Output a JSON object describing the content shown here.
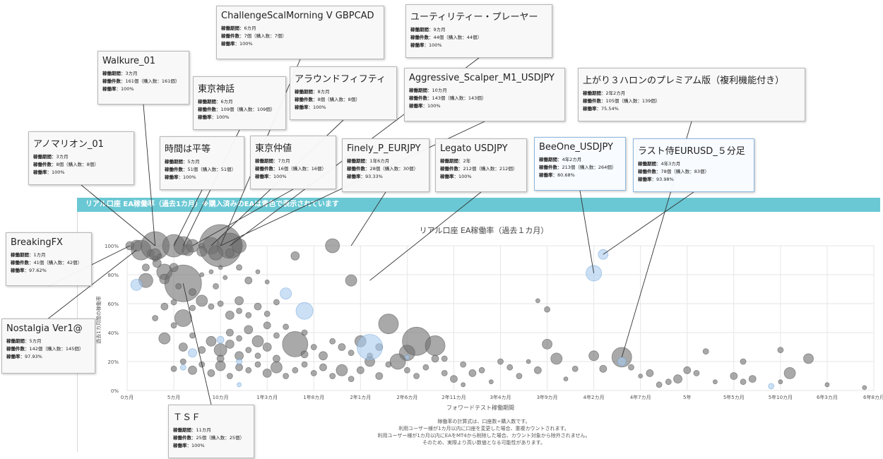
{
  "banner": "リアル口座 EA稼働率（過去1カ月）※購入済みのEAは青色で表示されています",
  "card_labels": {
    "period": "稼働期間",
    "count": "稼働件数",
    "rate": "稼働率"
  },
  "cards": [
    {
      "name": "ChallengeScalMorning V GBPCAD",
      "period": "：6カ月",
      "count": "：7個（購入数：7個）",
      "rate": "：100%",
      "buy": false
    },
    {
      "name": "ユーティリティー・プレーヤー",
      "period": "：9カ月",
      "count": "：44個（購入数：44個）",
      "rate": "：100%",
      "buy": false
    },
    {
      "name": "Walkure_01",
      "period": "：3カ月",
      "count": "：161個（購入数：161個）",
      "rate": "：100%",
      "buy": false
    },
    {
      "name": "東京神話",
      "period": "：6カ月",
      "count": "：109個（購入数：109個）",
      "rate": "：100%",
      "buy": false
    },
    {
      "name": "アラウンドフィフティ",
      "period": "：8カ月",
      "count": "：8個（購入数：8個）",
      "rate": "：100%",
      "buy": false
    },
    {
      "name": "Aggressive_Scalper_M1_USDJPY",
      "period": "：10カ月",
      "count": "：143個（購入数：143個）",
      "rate": "：100%",
      "buy": false
    },
    {
      "name": "上がり３ハロンのプレミアム版（複利機能付き）",
      "period": "：2年2カ月",
      "count": "：105個（購入数：139個）",
      "rate": "：75.54%",
      "buy": false
    },
    {
      "name": "アノマリオン_01",
      "period": "：3カ月",
      "count": "：8個（購入数：8個）",
      "rate": "：100%",
      "buy": false
    },
    {
      "name": "時間は平等",
      "period": "：5カ月",
      "count": "：51個（購入数：51個）",
      "rate": "：100%",
      "buy": false
    },
    {
      "name": "東京仲値",
      "period": "：7カ月",
      "count": "：16個（購入数：16個）",
      "rate": "：100%",
      "buy": false
    },
    {
      "name": "Finely_P_EURJPY",
      "period": "：1年6カ月",
      "count": "：28個（購入数：30個）",
      "rate": "：93.33%",
      "buy": false
    },
    {
      "name": "Legato USDJPY",
      "period": "：2年",
      "count": "：212個（購入数：212個）",
      "rate": "：100%",
      "buy": false
    },
    {
      "name": "BeeOne_USDJPY",
      "period": "：4年2カ月",
      "count": "：213個（購入数：264個）",
      "rate": "：80.68%",
      "buy": true
    },
    {
      "name": "ラスト侍EURUSD_５分足",
      "period": "：4年3カ月",
      "count": "：78個（購入数：83個）",
      "rate": "：93.98%",
      "buy": true
    },
    {
      "name": "BreakingFX",
      "period": "：1カ月",
      "count": "：41個（購入数：42個）",
      "rate": "：97.62%",
      "buy": false
    },
    {
      "name": "Nostalgia Ver1@",
      "period": "：5カ月",
      "count": "：142個（購入数：145個）",
      "rate": "：97.93%",
      "buy": false
    },
    {
      "name": "ＴＳＦ",
      "period": "：11カ月",
      "count": "：25個（購入数：25個）",
      "rate": "：100%",
      "buy": false
    }
  ],
  "chart_data": {
    "type": "scatter",
    "title": "リアル口座 EA稼働率（過去１カ月）",
    "xlabel": "フォワードテスト稼働期間",
    "ylabel": "過去1カ月間の稼働率",
    "x_unit": "months",
    "xlim": [
      0,
      80
    ],
    "ylim": [
      0,
      100
    ],
    "x_tick_labels": [
      "0カ月",
      "5カ月",
      "10カ月",
      "1年3カ月",
      "1年8カ月",
      "2年1カ月",
      "2年6カ月",
      "2年11カ月",
      "3年4カ月",
      "3年9カ月",
      "4年2カ月",
      "4年7カ月",
      "5年",
      "5年5カ月",
      "5年10カ月",
      "6年3カ月",
      "6年8カ月"
    ],
    "y_tick_labels": [
      "0%",
      "20%",
      "40%",
      "60%",
      "80%",
      "100%"
    ],
    "grid": true,
    "colors": {
      "normal": "#707070",
      "purchased": "#a8cbef",
      "purchased_stroke": "#6fa3d8"
    },
    "series": [
      {
        "name": "EA",
        "points": [
          {
            "x": 0.3,
            "y": 100,
            "s": 6
          },
          {
            "x": 1,
            "y": 100,
            "s": 8
          },
          {
            "x": 1.5,
            "y": 97,
            "s": 14
          },
          {
            "x": 2.5,
            "y": 95,
            "s": 5
          },
          {
            "x": 3,
            "y": 100,
            "s": 20
          },
          {
            "x": 3,
            "y": 94,
            "s": 8
          },
          {
            "x": 3,
            "y": 91,
            "s": 4
          },
          {
            "x": 3.2,
            "y": 88,
            "s": 6
          },
          {
            "x": 3.5,
            "y": 93,
            "s": 3
          },
          {
            "x": 2,
            "y": 85,
            "s": 5
          },
          {
            "x": 2,
            "y": 76,
            "s": 10
          },
          {
            "x": 4,
            "y": 82,
            "s": 11
          },
          {
            "x": 4,
            "y": 77,
            "s": 7
          },
          {
            "x": 5,
            "y": 100,
            "s": 16
          },
          {
            "x": 6,
            "y": 100,
            "s": 13
          },
          {
            "x": 6.5,
            "y": 97,
            "s": 8
          },
          {
            "x": 7,
            "y": 100,
            "s": 9
          },
          {
            "x": 8,
            "y": 100,
            "s": 4
          },
          {
            "x": 9,
            "y": 100,
            "s": 12
          },
          {
            "x": 10,
            "y": 100,
            "s": 30
          },
          {
            "x": 11,
            "y": 100,
            "s": 18
          },
          {
            "x": 12,
            "y": 100,
            "s": 10
          },
          {
            "x": 8,
            "y": 96,
            "s": 7
          },
          {
            "x": 9.5,
            "y": 95,
            "s": 10
          },
          {
            "x": 11,
            "y": 95,
            "s": 6
          },
          {
            "x": 6,
            "y": 74,
            "s": 26
          },
          {
            "x": 5,
            "y": 85,
            "s": 6
          },
          {
            "x": 5.5,
            "y": 72,
            "s": 4
          },
          {
            "x": 7,
            "y": 68,
            "s": 5
          },
          {
            "x": 8,
            "y": 80,
            "s": 3
          },
          {
            "x": 9,
            "y": 82,
            "s": 3
          },
          {
            "x": 9.5,
            "y": 72,
            "s": 4
          },
          {
            "x": 10,
            "y": 85,
            "s": 3
          },
          {
            "x": 10.5,
            "y": 78,
            "s": 3
          },
          {
            "x": 12,
            "y": 85,
            "s": 4
          },
          {
            "x": 13,
            "y": 76,
            "s": 5
          },
          {
            "x": 14,
            "y": 82,
            "s": 3
          },
          {
            "x": 15,
            "y": 75,
            "s": 3
          },
          {
            "x": 18,
            "y": 93,
            "s": 6
          },
          {
            "x": 4,
            "y": 58,
            "s": 5
          },
          {
            "x": 5,
            "y": 61,
            "s": 4
          },
          {
            "x": 6,
            "y": 50,
            "s": 12
          },
          {
            "x": 7,
            "y": 57,
            "s": 4
          },
          {
            "x": 8,
            "y": 62,
            "s": 8
          },
          {
            "x": 9,
            "y": 58,
            "s": 4
          },
          {
            "x": 10,
            "y": 60,
            "s": 4
          },
          {
            "x": 11,
            "y": 52,
            "s": 6
          },
          {
            "x": 12,
            "y": 62,
            "s": 6
          },
          {
            "x": 12,
            "y": 55,
            "s": 4
          },
          {
            "x": 13,
            "y": 52,
            "s": 4
          },
          {
            "x": 14,
            "y": 58,
            "s": 5
          },
          {
            "x": 15,
            "y": 53,
            "s": 4
          },
          {
            "x": 16,
            "y": 61,
            "s": 4
          },
          {
            "x": 3,
            "y": 50,
            "s": 4
          },
          {
            "x": 4,
            "y": 36,
            "s": 8
          },
          {
            "x": 5,
            "y": 45,
            "s": 4
          },
          {
            "x": 6,
            "y": 30,
            "s": 6
          },
          {
            "x": 7,
            "y": 38,
            "s": 4
          },
          {
            "x": 8,
            "y": 28,
            "s": 5
          },
          {
            "x": 9,
            "y": 34,
            "s": 7
          },
          {
            "x": 10,
            "y": 28,
            "s": 9
          },
          {
            "x": 10,
            "y": 22,
            "s": 5
          },
          {
            "x": 11,
            "y": 40,
            "s": 5
          },
          {
            "x": 11,
            "y": 32,
            "s": 6
          },
          {
            "x": 12,
            "y": 36,
            "s": 4
          },
          {
            "x": 12,
            "y": 24,
            "s": 6
          },
          {
            "x": 13,
            "y": 42,
            "s": 6
          },
          {
            "x": 13,
            "y": 28,
            "s": 4
          },
          {
            "x": 14,
            "y": 34,
            "s": 8
          },
          {
            "x": 14,
            "y": 24,
            "s": 4
          },
          {
            "x": 15,
            "y": 45,
            "s": 5
          },
          {
            "x": 15,
            "y": 30,
            "s": 6
          },
          {
            "x": 16,
            "y": 38,
            "s": 4
          },
          {
            "x": 16,
            "y": 22,
            "s": 5
          },
          {
            "x": 17,
            "y": 44,
            "s": 4
          },
          {
            "x": 18,
            "y": 32,
            "s": 18
          },
          {
            "x": 19,
            "y": 25,
            "s": 5
          },
          {
            "x": 19,
            "y": 40,
            "s": 4
          },
          {
            "x": 20,
            "y": 30,
            "s": 4
          },
          {
            "x": 21,
            "y": 24,
            "s": 6
          },
          {
            "x": 22,
            "y": 34,
            "s": 4
          },
          {
            "x": 23,
            "y": 30,
            "s": 5
          },
          {
            "x": 24,
            "y": 26,
            "s": 4
          },
          {
            "x": 25,
            "y": 34,
            "s": 8
          },
          {
            "x": 26,
            "y": 24,
            "s": 4
          },
          {
            "x": 27,
            "y": 30,
            "s": 5
          },
          {
            "x": 28,
            "y": 46,
            "s": 14
          },
          {
            "x": 30,
            "y": 26,
            "s": 11
          },
          {
            "x": 31,
            "y": 34,
            "s": 20
          },
          {
            "x": 33,
            "y": 31,
            "s": 14
          },
          {
            "x": 34,
            "y": 22,
            "s": 4
          },
          {
            "x": 5,
            "y": 15,
            "s": 4
          },
          {
            "x": 6,
            "y": 20,
            "s": 4
          },
          {
            "x": 7,
            "y": 14,
            "s": 6
          },
          {
            "x": 8,
            "y": 18,
            "s": 4
          },
          {
            "x": 9,
            "y": 12,
            "s": 5
          },
          {
            "x": 10,
            "y": 17,
            "s": 7
          },
          {
            "x": 11,
            "y": 10,
            "s": 4
          },
          {
            "x": 12,
            "y": 16,
            "s": 5
          },
          {
            "x": 13,
            "y": 14,
            "s": 4
          },
          {
            "x": 14,
            "y": 18,
            "s": 4
          },
          {
            "x": 15,
            "y": 12,
            "s": 6
          },
          {
            "x": 16,
            "y": 16,
            "s": 8
          },
          {
            "x": 17,
            "y": 10,
            "s": 4
          },
          {
            "x": 18,
            "y": 14,
            "s": 4
          },
          {
            "x": 19,
            "y": 18,
            "s": 4
          },
          {
            "x": 20,
            "y": 12,
            "s": 4
          },
          {
            "x": 21,
            "y": 16,
            "s": 5
          },
          {
            "x": 22,
            "y": 10,
            "s": 4
          },
          {
            "x": 23,
            "y": 14,
            "s": 8
          },
          {
            "x": 24,
            "y": 8,
            "s": 4
          },
          {
            "x": 25,
            "y": 14,
            "s": 5
          },
          {
            "x": 26,
            "y": 20,
            "s": 7
          },
          {
            "x": 27,
            "y": 10,
            "s": 5
          },
          {
            "x": 28,
            "y": 18,
            "s": 4
          },
          {
            "x": 29,
            "y": 20,
            "s": 11
          },
          {
            "x": 30,
            "y": 14,
            "s": 4
          },
          {
            "x": 31,
            "y": 10,
            "s": 4
          },
          {
            "x": 32,
            "y": 16,
            "s": 4
          },
          {
            "x": 33,
            "y": 22,
            "s": 5
          },
          {
            "x": 34,
            "y": 12,
            "s": 4
          },
          {
            "x": 35,
            "y": 8,
            "s": 5
          },
          {
            "x": 36,
            "y": 18,
            "s": 4
          },
          {
            "x": 37,
            "y": 12,
            "s": 5
          },
          {
            "x": 38,
            "y": 14,
            "s": 4
          },
          {
            "x": 40,
            "y": 20,
            "s": 4
          },
          {
            "x": 41,
            "y": 16,
            "s": 4
          },
          {
            "x": 42,
            "y": 10,
            "s": 4
          },
          {
            "x": 44,
            "y": 62,
            "s": 3
          },
          {
            "x": 45,
            "y": 56,
            "s": 4
          },
          {
            "x": 44,
            "y": 14,
            "s": 5
          },
          {
            "x": 45,
            "y": 32,
            "s": 7
          },
          {
            "x": 46,
            "y": 22,
            "s": 8
          },
          {
            "x": 48,
            "y": 15,
            "s": 4
          },
          {
            "x": 50,
            "y": 24,
            "s": 7
          },
          {
            "x": 51,
            "y": 15,
            "s": 5
          },
          {
            "x": 53,
            "y": 23,
            "s": 14
          },
          {
            "x": 54,
            "y": 16,
            "s": 4
          },
          {
            "x": 56,
            "y": 12,
            "s": 5
          },
          {
            "x": 57,
            "y": 4,
            "s": 4
          },
          {
            "x": 58,
            "y": 6,
            "s": 4
          },
          {
            "x": 59,
            "y": 8,
            "s": 6
          },
          {
            "x": 60,
            "y": 14,
            "s": 5
          },
          {
            "x": 61,
            "y": 12,
            "s": 4
          },
          {
            "x": 62,
            "y": 27,
            "s": 4
          },
          {
            "x": 63,
            "y": 6,
            "s": 3
          },
          {
            "x": 65,
            "y": 10,
            "s": 5
          },
          {
            "x": 66,
            "y": 20,
            "s": 4
          },
          {
            "x": 67,
            "y": 8,
            "s": 5
          },
          {
            "x": 70,
            "y": 6,
            "s": 3
          },
          {
            "x": 70,
            "y": 28,
            "s": 4
          },
          {
            "x": 71,
            "y": 12,
            "s": 8
          },
          {
            "x": 73,
            "y": 22,
            "s": 7
          },
          {
            "x": 75,
            "y": 4,
            "s": 3
          },
          {
            "x": 79,
            "y": 2,
            "s": 3
          },
          {
            "x": 66,
            "y": 6,
            "s": 4
          },
          {
            "x": 55,
            "y": 10,
            "s": 3
          },
          {
            "x": 47,
            "y": 8,
            "s": 3
          },
          {
            "x": 43,
            "y": 20,
            "s": 3
          },
          {
            "x": 39,
            "y": 6,
            "s": 3
          },
          {
            "x": 36,
            "y": 4,
            "s": 3
          },
          {
            "x": 22,
            "y": 100,
            "s": 10
          },
          {
            "x": 24,
            "y": 76,
            "s": 8
          },
          {
            "x": 1,
            "y": 73,
            "s": 8,
            "purchased": true
          },
          {
            "x": 17,
            "y": 67,
            "s": 8,
            "purchased": true
          },
          {
            "x": 19,
            "y": 55,
            "s": 12,
            "purchased": true
          },
          {
            "x": 26,
            "y": 30,
            "s": 18,
            "purchased": true
          },
          {
            "x": 7,
            "y": 26,
            "s": 6,
            "purchased": true
          },
          {
            "x": 10,
            "y": 35,
            "s": 5,
            "purchased": true
          },
          {
            "x": 12,
            "y": 20,
            "s": 4,
            "purchased": true
          },
          {
            "x": 6,
            "y": 16,
            "s": 4,
            "purchased": true
          },
          {
            "x": 50,
            "y": 81,
            "s": 11,
            "purchased": true
          },
          {
            "x": 51,
            "y": 94,
            "s": 7,
            "purchased": true
          },
          {
            "x": 53,
            "y": 20,
            "s": 6,
            "purchased": true
          },
          {
            "x": 69,
            "y": 3,
            "s": 4,
            "purchased": true
          },
          {
            "x": 30,
            "y": 23,
            "s": 3,
            "purchased": true
          },
          {
            "x": 12,
            "y": 4,
            "s": 3,
            "purchased": true
          }
        ]
      }
    ]
  },
  "footnotes": [
    "稼働率の計算式は、口座数÷購入数です。",
    "利用ユーザー様が1カ月以内に口座を変更した場合、重複カウントされます。",
    "利用ユーザー様が1カ月以内にEAをMT4から削除した場合、カウント対象から除外されません。",
    "そのため、実際より高い数値となる可能性があります。"
  ]
}
